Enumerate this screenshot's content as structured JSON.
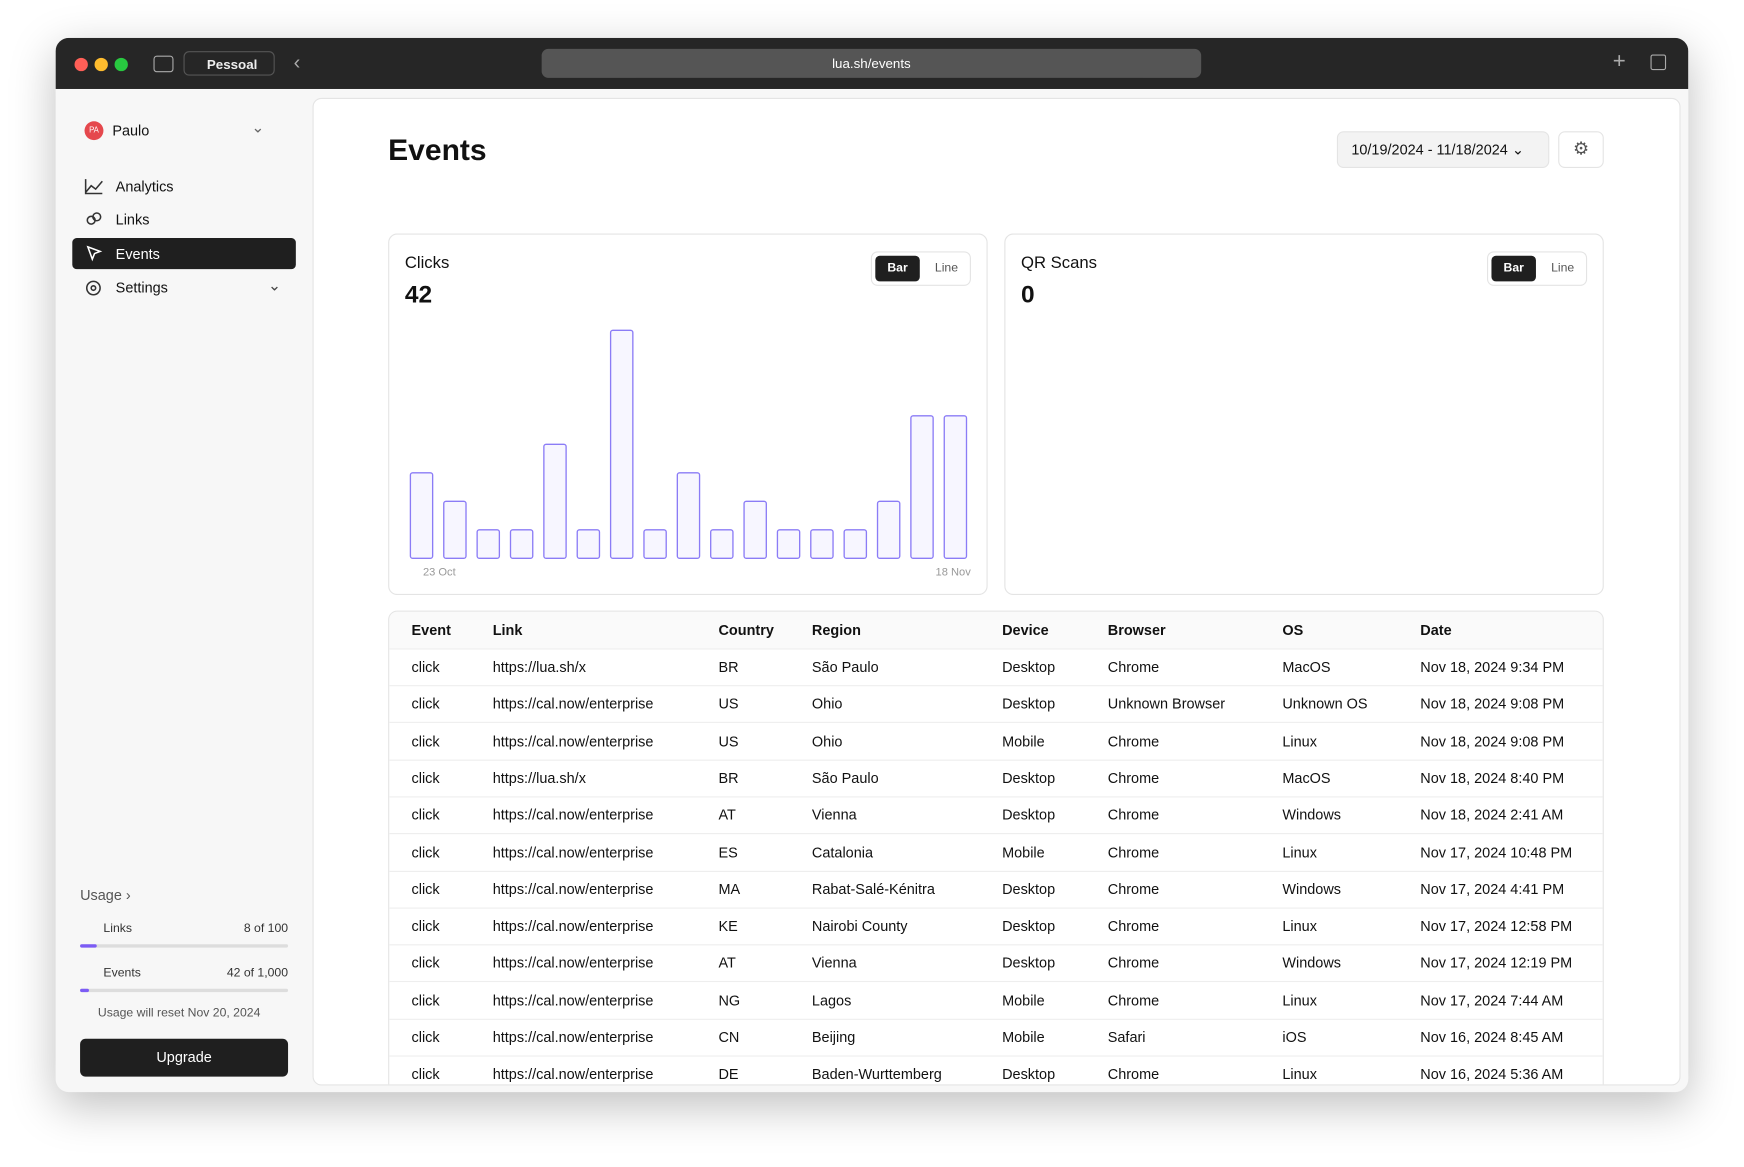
{
  "browser": {
    "profile": "Pessoal",
    "url": "lua.sh/events"
  },
  "sidebar": {
    "user": {
      "initials": "PA",
      "name": "Paulo"
    },
    "nav": [
      "Analytics",
      "Links",
      "Events",
      "Settings"
    ],
    "usage": {
      "title": "Usage",
      "items": [
        {
          "label": "Links",
          "value": "8 of 100",
          "used": 8,
          "limit": 100
        },
        {
          "label": "Events",
          "value": "42 of 1,000",
          "used": 42,
          "limit": 1000
        }
      ],
      "reset": "Usage will reset Nov 20, 2024",
      "upgrade": "Upgrade"
    }
  },
  "header": {
    "title": "Events",
    "date_range": "10/19/2024 - 11/18/2024"
  },
  "charts": [
    {
      "type": "bar",
      "title": "Clicks",
      "total": 42,
      "toggle": [
        "Bar",
        "Line"
      ],
      "color": "#8b7cf6",
      "categories": [
        "23 Oct",
        null,
        null,
        null,
        null,
        null,
        null,
        null,
        null,
        null,
        null,
        null,
        null,
        null,
        null,
        null,
        "18 Nov"
      ],
      "values": [
        3,
        2,
        1,
        1,
        4,
        1,
        8,
        1,
        3,
        1,
        2,
        1,
        1,
        1,
        2,
        5,
        5
      ],
      "ylim": [
        0,
        8
      ]
    },
    {
      "type": "bar",
      "title": "QR Scans",
      "total": 0,
      "toggle": [
        "Bar",
        "Line"
      ]
    }
  ],
  "table": {
    "columns": [
      "Event",
      "Link",
      "Country",
      "Region",
      "Device",
      "Browser",
      "OS",
      "Date"
    ],
    "rows": [
      [
        "click",
        "https://lua.sh/x",
        "BR",
        "São Paulo",
        "Desktop",
        "Chrome",
        "MacOS",
        "Nov 18, 2024 9:34 PM"
      ],
      [
        "click",
        "https://cal.now/enterprise",
        "US",
        "Ohio",
        "Desktop",
        "Unknown Browser",
        "Unknown OS",
        "Nov 18, 2024 9:08 PM"
      ],
      [
        "click",
        "https://cal.now/enterprise",
        "US",
        "Ohio",
        "Mobile",
        "Chrome",
        "Linux",
        "Nov 18, 2024 9:08 PM"
      ],
      [
        "click",
        "https://lua.sh/x",
        "BR",
        "São Paulo",
        "Desktop",
        "Chrome",
        "MacOS",
        "Nov 18, 2024 8:40 PM"
      ],
      [
        "click",
        "https://cal.now/enterprise",
        "AT",
        "Vienna",
        "Desktop",
        "Chrome",
        "Windows",
        "Nov 18, 2024 2:41 AM"
      ],
      [
        "click",
        "https://cal.now/enterprise",
        "ES",
        "Catalonia",
        "Mobile",
        "Chrome",
        "Linux",
        "Nov 17, 2024 10:48 PM"
      ],
      [
        "click",
        "https://cal.now/enterprise",
        "MA",
        "Rabat-Salé-Kénitra",
        "Desktop",
        "Chrome",
        "Windows",
        "Nov 17, 2024 4:41 PM"
      ],
      [
        "click",
        "https://cal.now/enterprise",
        "KE",
        "Nairobi County",
        "Desktop",
        "Chrome",
        "Linux",
        "Nov 17, 2024 12:58 PM"
      ],
      [
        "click",
        "https://cal.now/enterprise",
        "AT",
        "Vienna",
        "Desktop",
        "Chrome",
        "Windows",
        "Nov 17, 2024 12:19 PM"
      ],
      [
        "click",
        "https://cal.now/enterprise",
        "NG",
        "Lagos",
        "Mobile",
        "Chrome",
        "Linux",
        "Nov 17, 2024 7:44 AM"
      ],
      [
        "click",
        "https://cal.now/enterprise",
        "CN",
        "Beijing",
        "Mobile",
        "Safari",
        "iOS",
        "Nov 16, 2024 8:45 AM"
      ],
      [
        "click",
        "https://cal.now/enterprise",
        "DE",
        "Baden-Wurttemberg",
        "Desktop",
        "Chrome",
        "Linux",
        "Nov 16, 2024 5:36 AM"
      ]
    ]
  }
}
